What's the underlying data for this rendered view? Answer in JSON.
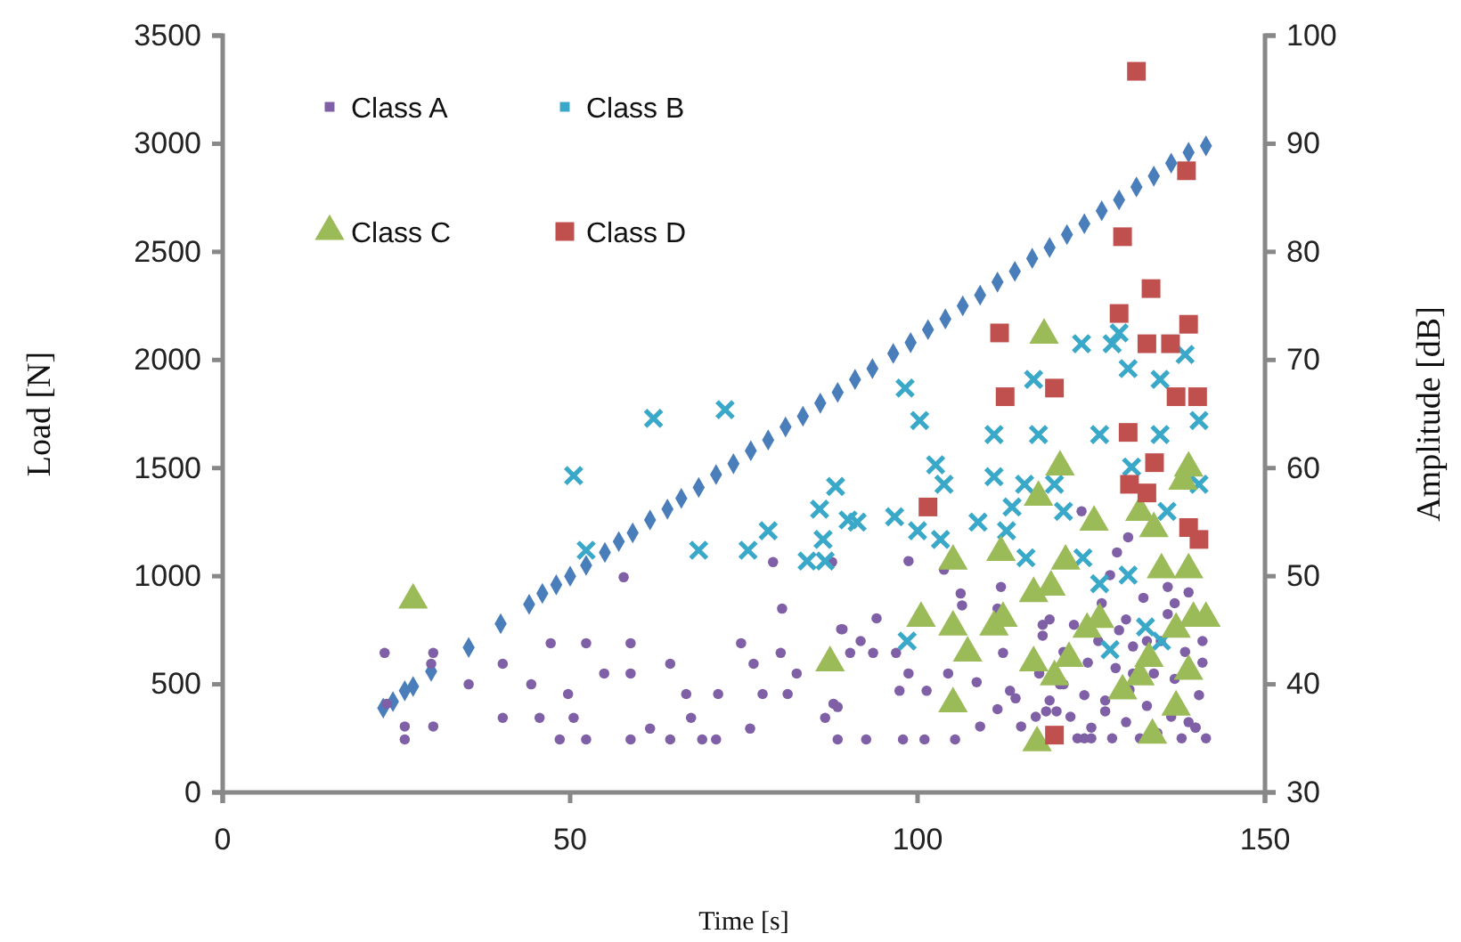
{
  "chart_data": {
    "type": "scatter",
    "xlabel": "Time [s]",
    "ylabel": "Load [N]",
    "y2label": "Amplitude [dB]",
    "xlim": [
      0,
      150
    ],
    "xticks": [
      0,
      50,
      100,
      150
    ],
    "ylim": [
      0,
      3500
    ],
    "yticks": [
      0,
      500,
      1000,
      1500,
      2000,
      2500,
      3000,
      3500
    ],
    "y2lim": [
      30,
      100
    ],
    "y2ticks": [
      30,
      40,
      50,
      60,
      70,
      80,
      90,
      100
    ],
    "grid": false,
    "legend": "top left",
    "series": [
      {
        "color": "#4a7ebb",
        "marker": "diamond",
        "x": [
          23.1,
          24.5,
          26.2,
          27.4,
          30,
          35.4,
          40,
          44.1,
          46,
          48,
          50,
          52.3,
          55,
          57,
          59,
          61.5,
          64,
          66,
          68.5,
          71,
          73.5,
          76,
          78.5,
          81,
          83.5,
          86,
          88.5,
          91,
          93.5,
          96.5,
          99,
          101.5,
          104,
          106.5,
          109,
          111.5,
          114,
          116.5,
          119,
          121.5,
          124,
          126.5,
          129,
          131.5,
          134,
          136.5,
          139,
          141.5
        ],
        "values": [
          390,
          420,
          470,
          490,
          560,
          670,
          780,
          870,
          920,
          960,
          1000,
          1050,
          1110,
          1160,
          1200,
          1260,
          1310,
          1360,
          1410,
          1470,
          1520,
          1580,
          1630,
          1690,
          1740,
          1800,
          1850,
          1910,
          1960,
          2030,
          2080,
          2140,
          2190,
          2250,
          2300,
          2360,
          2410,
          2470,
          2520,
          2580,
          2630,
          2690,
          2740,
          2800,
          2850,
          2910,
          2960,
          2990
        ]
      },
      {
        "name": "Class A",
        "color": "#7f5fa6",
        "marker": "circle",
        "axis": "y2",
        "x": [
          23.3,
          23.6,
          26.2,
          26.2,
          30.3,
          30.3,
          30,
          35.4,
          40.3,
          40.3,
          44.4,
          45.6,
          47.2,
          48.5,
          49.7,
          50.5,
          52.3,
          52.3,
          54.9,
          57.7,
          58.7,
          58.7,
          58.7,
          61.5,
          64.4,
          64.4,
          66.7,
          67.4,
          69,
          71,
          71.3,
          74.6,
          75.9,
          76.4,
          77.7,
          79.2,
          80.3,
          80.5,
          81.3,
          82.6,
          87.7,
          87.9,
          86.7,
          88.5,
          89,
          90.3,
          89.2,
          94.1,
          98.7,
          103.8,
          106.2,
          112,
          123.6,
          128.7,
          127.7,
          130.3,
          91.8,
          93.6,
          96.9,
          98.7,
          104.4,
          108.5,
          97.4,
          101.3,
          113.3,
          88.5,
          92.6,
          97.9,
          101,
          105.4,
          109,
          111.5,
          114.9,
          106.4,
          111.5,
          112.3,
          114.1,
          117,
          117.5,
          118,
          118.5,
          119,
          120,
          120.5,
          121,
          122,
          122.5,
          123,
          124,
          124.5,
          125,
          126,
          126.5,
          127,
          128,
          128.5,
          129,
          130,
          130.5,
          131,
          132,
          132.5,
          133,
          134,
          134.5,
          135,
          136,
          136.5,
          137,
          138,
          138.5,
          139,
          140,
          140.5,
          141,
          141.5,
          118,
          121,
          124,
          127,
          130,
          133,
          136,
          139,
          141,
          119,
          125,
          131,
          137,
          140
        ],
        "values": [
          42.9,
          38.2,
          36.1,
          34.9,
          36.1,
          42.9,
          41.9,
          40,
          41.9,
          36.9,
          40,
          36.9,
          43.8,
          34.9,
          39.1,
          36.9,
          43.8,
          34.9,
          41,
          49.9,
          43.8,
          41,
          34.9,
          35.9,
          41.9,
          34.9,
          39.1,
          36.9,
          34.9,
          34.9,
          39.1,
          43.8,
          35.9,
          41.9,
          39.1,
          51.3,
          42.9,
          47,
          39.1,
          41,
          51.3,
          38.2,
          36.9,
          34.9,
          45.1,
          42.9,
          45.1,
          46.1,
          51.4,
          50.6,
          48.4,
          49,
          56,
          52.2,
          50.1,
          53.6,
          44,
          42.9,
          42.9,
          41,
          41,
          40.2,
          39.4,
          39.4,
          39.4,
          37.9,
          34.9,
          34.9,
          34.9,
          34.9,
          36.1,
          37.7,
          36.1,
          47.3,
          47,
          42.9,
          38.7,
          37,
          41,
          44.5,
          37.5,
          46,
          37.5,
          40,
          43,
          37,
          45.5,
          35,
          39,
          42,
          36,
          44,
          47.5,
          38.5,
          35,
          41.5,
          45,
          36.5,
          39.5,
          43.5,
          35,
          48,
          38,
          41,
          35.5,
          44,
          46.5,
          37,
          40.5,
          35,
          43,
          48.5,
          36,
          39,
          42,
          35,
          45.5,
          40,
          35,
          37.5,
          46,
          44,
          49,
          36.5,
          44,
          38.5,
          35,
          41,
          47.5,
          36
        ]
      },
      {
        "name": "Class B",
        "color": "#3aa8c8",
        "marker": "cross",
        "axis": "y2",
        "x": [
          50.5,
          62,
          72.3,
          52.3,
          68.5,
          75.6,
          78.5,
          85.9,
          88.2,
          86.4,
          84.1,
          86.7,
          90,
          98.2,
          100.3,
          111,
          117.4,
          116.7,
          123.6,
          128,
          129,
          130.3,
          138.5,
          134.9,
          140.5,
          126.2,
          134.9,
          102.6,
          103.8,
          111,
          115.4,
          119.7,
          96.7,
          91.3,
          100,
          108.7,
          113.6,
          121,
          103.3,
          112.8,
          115.6,
          123.8,
          130.8,
          135.9,
          140.5,
          126.2,
          132.8,
          135.1,
          127.7,
          98.5,
          130.3
        ],
        "values": [
          59.3,
          64.6,
          65.4,
          52.4,
          52.4,
          52.4,
          54.2,
          56.2,
          58.3,
          53.4,
          51.4,
          51.4,
          55.2,
          67.4,
          64.4,
          63.1,
          63.1,
          68.2,
          71.5,
          71.5,
          72.5,
          69.2,
          70.5,
          68.2,
          64.4,
          63.1,
          63.1,
          60.3,
          58.5,
          59.2,
          58.5,
          58.5,
          55.5,
          55,
          54.2,
          55,
          56.4,
          56,
          53.4,
          54.2,
          51.7,
          51.7,
          60.1,
          56,
          58.5,
          49.3,
          45.3,
          44,
          43.2,
          44,
          50.1
        ]
      },
      {
        "name": "Class C",
        "color": "#9bbb59",
        "marker": "triangle",
        "axis": "y2",
        "x": [
          27.4,
          87.4,
          118.2,
          120.5,
          117.4,
          125.4,
          112,
          105.1,
          121.3,
          139,
          138.2,
          132,
          134,
          100.5,
          105.1,
          112.3,
          111,
          116.7,
          119.2,
          126.2,
          107.2,
          116.7,
          121.8,
          105.1,
          133.3,
          139.7,
          137.2,
          139,
          129.5,
          137.2,
          117.2,
          133.8,
          132,
          119.7,
          124.4,
          135.1,
          141.5,
          139
        ],
        "values": [
          47.8,
          42,
          72.3,
          60.1,
          57.3,
          55,
          52.2,
          51.4,
          51.4,
          60,
          58.8,
          55.9,
          54.4,
          46.1,
          45.3,
          46.1,
          45.3,
          48.4,
          49,
          46,
          42.9,
          42,
          42.4,
          38.2,
          42.4,
          46.1,
          45.1,
          41.2,
          39.4,
          37.9,
          34.6,
          35.3,
          40.7,
          40.7,
          45.1,
          50.6,
          46.1,
          50.6
        ]
      },
      {
        "name": "Class D",
        "color": "#c0504d",
        "marker": "square",
        "axis": "y2",
        "x": [
          131.5,
          138.7,
          129.5,
          133.6,
          129,
          139,
          111.8,
          133,
          136.4,
          119.7,
          112.6,
          137.2,
          140.3,
          130.3,
          134.1,
          130.5,
          133,
          101.5,
          139,
          140.5,
          119.7
        ],
        "values": [
          96.7,
          87.5,
          81.4,
          76.6,
          74.3,
          73.3,
          72.5,
          71.5,
          71.5,
          67.4,
          66.6,
          66.6,
          66.6,
          63.3,
          60.5,
          58.5,
          57.7,
          56.4,
          54.5,
          53.4,
          35.3
        ]
      }
    ]
  }
}
